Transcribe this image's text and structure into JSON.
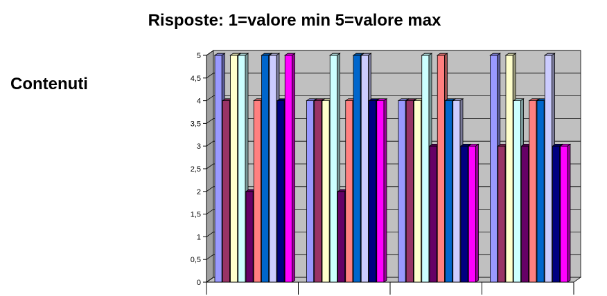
{
  "title": "Risposte: 1=valore min 5=valore max",
  "side_label": "Contenuti",
  "chart_data": {
    "type": "bar",
    "categories": [
      "",
      "",
      "",
      ""
    ],
    "ylim": [
      0,
      5
    ],
    "yticks": [
      "0",
      "0,5",
      "1",
      "1,5",
      "2",
      "2,5",
      "3",
      "3,5",
      "4",
      "4,5",
      "5"
    ],
    "grid": true,
    "series": [
      {
        "color": "#9999FF",
        "values": [
          5,
          4,
          4,
          5
        ]
      },
      {
        "color": "#993366",
        "values": [
          4,
          4,
          4,
          3
        ]
      },
      {
        "color": "#FFFFCC",
        "values": [
          5,
          4,
          4,
          5
        ]
      },
      {
        "color": "#CCFFFF",
        "values": [
          5,
          5,
          5,
          4
        ]
      },
      {
        "color": "#660066",
        "values": [
          2,
          2,
          3,
          3
        ]
      },
      {
        "color": "#FF8080",
        "values": [
          4,
          4,
          5,
          4
        ]
      },
      {
        "color": "#0066CC",
        "values": [
          5,
          5,
          4,
          4
        ]
      },
      {
        "color": "#CCCCFF",
        "values": [
          5,
          5,
          4,
          5
        ]
      },
      {
        "color": "#000080",
        "values": [
          4,
          4,
          3,
          3
        ]
      },
      {
        "color": "#FF00FF",
        "values": [
          5,
          4,
          3,
          3
        ]
      }
    ]
  }
}
